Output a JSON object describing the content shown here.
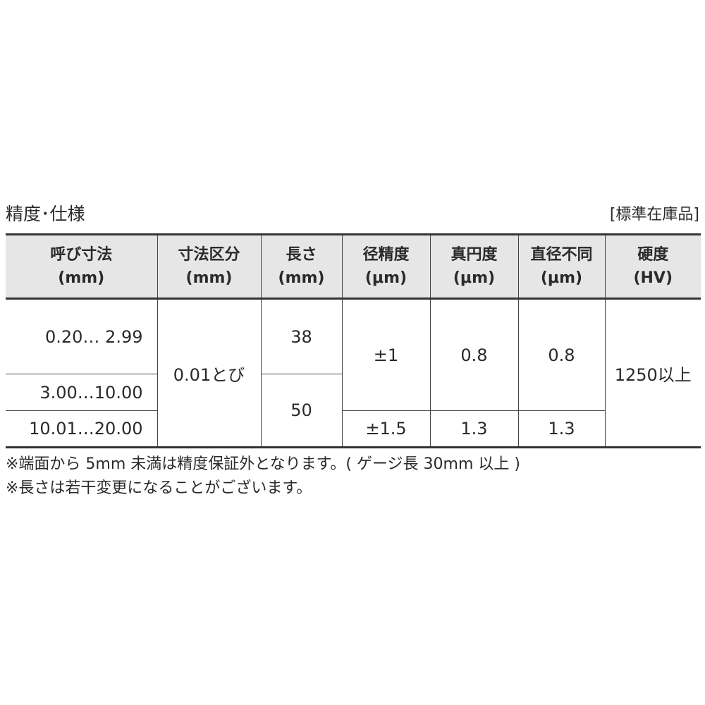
{
  "title": "精度･仕様",
  "stock_label": "[標準在庫品]",
  "table": {
    "headers": [
      {
        "line1": "呼び寸法",
        "line2": "(mm)"
      },
      {
        "line1": "寸法区分",
        "line2": "(mm)"
      },
      {
        "line1": "長さ",
        "line2": "(mm)"
      },
      {
        "line1": "径精度",
        "line2": "(μm)"
      },
      {
        "line1": "真円度",
        "line2": "(μm)"
      },
      {
        "line1": "直径不同",
        "line2": "(μm)"
      },
      {
        "line1": "硬度",
        "line2": "(HV)"
      }
    ],
    "nominal": [
      "0.20…  2.99",
      "3.00…10.00",
      "10.01…20.00"
    ],
    "increment": "0.01とび",
    "length": [
      "38",
      "50"
    ],
    "diameter_accuracy": [
      "±1",
      "±1.5"
    ],
    "roundness": [
      "0.8",
      "1.3"
    ],
    "diameter_variation": [
      "0.8",
      "1.3"
    ],
    "hardness": "1250以上"
  },
  "notes": [
    "※端面から 5mm 未満は精度保証外となります。( ゲージ長 30mm 以上 )",
    "※長さは若干変更になることがございます。"
  ]
}
